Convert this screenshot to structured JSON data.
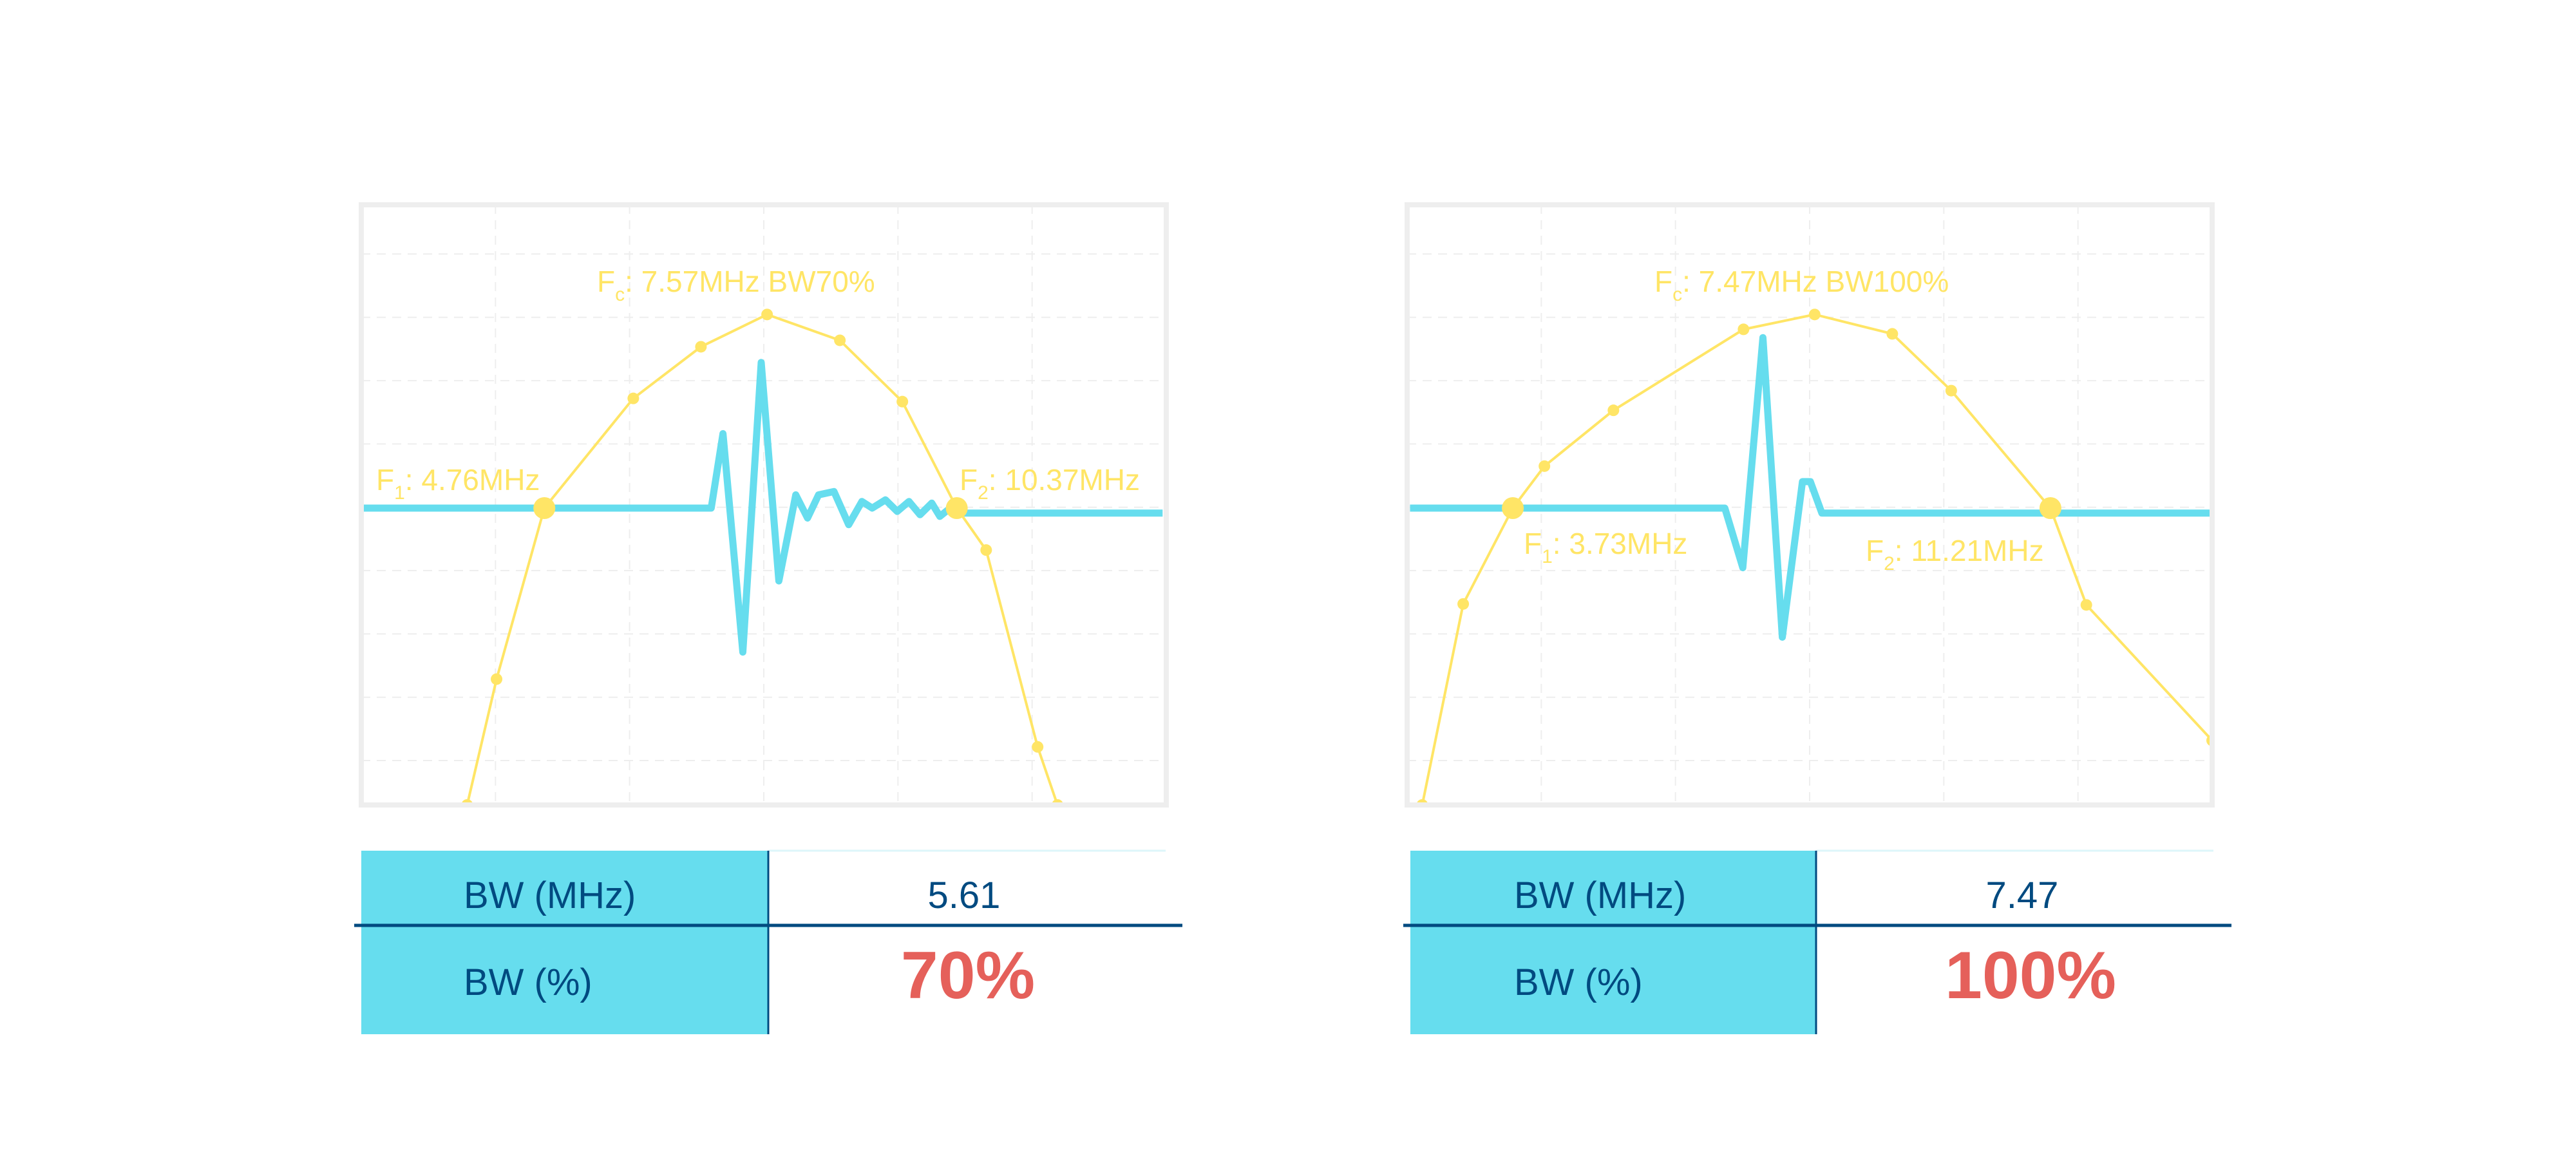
{
  "colors": {
    "spectrum": "#FFE566",
    "pulse": "#66DDEE",
    "frame": "#EEEEEE",
    "grid": "#EEEEEE",
    "table_header": "#66DDEE",
    "table_text": "#004A80",
    "highlight": "#E5605A"
  },
  "chart_data": [
    {
      "type": "line",
      "grid": true,
      "xlim": [
        2.27,
        13.22
      ],
      "ylim": [
        -15.2,
        3.4
      ],
      "series": [
        {
          "kind": "spectrum",
          "x": [
            3.71,
            4.11,
            4.76,
            5.97,
            6.89,
            7.79,
            8.78,
            9.63,
            10.37,
            10.77,
            11.47,
            11.74
          ],
          "y": [
            -15.2,
            -11.3,
            -6,
            -2.6,
            -1.0,
            0,
            -0.8,
            -2.7,
            -6,
            -7.3,
            -13.4,
            -15.2
          ]
        },
        {
          "kind": "pulse",
          "x": [
            2.29,
            4.76,
            7.03,
            7.19,
            7.46,
            7.71,
            7.95,
            8.18,
            8.34,
            8.49,
            8.7,
            8.9,
            9.08,
            9.22,
            9.4,
            9.56,
            9.72,
            9.87,
            10.03,
            10.14,
            10.28,
            10.39,
            13.17
          ],
          "amplitude": [
            0,
            0,
            0,
            0.45,
            -0.87,
            0.88,
            -0.44,
            0.08,
            -0.06,
            0.08,
            0.1,
            -0.1,
            0.04,
            0,
            0.05,
            -0.02,
            0.04,
            -0.04,
            0.03,
            -0.05,
            0,
            -0.03,
            -0.03
          ]
        }
      ],
      "markers": [
        {
          "x": 4.76,
          "y": -6
        },
        {
          "x": 10.37,
          "y": -6
        }
      ],
      "annotations": {
        "fc": {
          "symbol": "F",
          "sub": "c",
          "text": ": 7.57MHz BW70%"
        },
        "f1": {
          "symbol": "F",
          "sub": "1",
          "text": ": 4.76MHz"
        },
        "f2": {
          "symbol": "F",
          "sub": "2",
          "text": ": 10.37MHz"
        }
      }
    },
    {
      "type": "line",
      "grid": true,
      "xlim": [
        2.26,
        13.46
      ],
      "ylim": [
        -15.2,
        3.4
      ],
      "series": [
        {
          "kind": "spectrum",
          "x": [
            2.47,
            3.04,
            3.73,
            4.17,
            5.13,
            6.94,
            7.93,
            9.01,
            9.83,
            11.21,
            11.71,
            13.46
          ],
          "y": [
            -15.2,
            -8.97,
            -6,
            -4.7,
            -2.97,
            -0.46,
            0,
            -0.6,
            -2.36,
            -6,
            -9.0,
            -13.2
          ]
        },
        {
          "kind": "pulse",
          "x": [
            2.3,
            3.73,
            6.68,
            6.93,
            7.21,
            7.48,
            7.76,
            7.87,
            8.03,
            13.46
          ],
          "amplitude": [
            0,
            0,
            0,
            -0.36,
            1.03,
            -0.78,
            0.16,
            0.16,
            -0.03,
            -0.03
          ]
        }
      ],
      "markers": [
        {
          "x": 3.73,
          "y": -6
        },
        {
          "x": 11.21,
          "y": -6
        }
      ],
      "annotations": {
        "fc": {
          "symbol": "F",
          "sub": "c",
          "text": ": 7.47MHz BW100%"
        },
        "f1": {
          "symbol": "F",
          "sub": "1",
          "text": ": 3.73MHz"
        },
        "f2": {
          "symbol": "F",
          "sub": "2",
          "text": ": 11.21MHz"
        }
      }
    }
  ],
  "tables": [
    {
      "rows": [
        {
          "label": "BW (MHz)",
          "value": "5.61"
        },
        {
          "label": "BW (%)",
          "value": "70%"
        }
      ]
    },
    {
      "rows": [
        {
          "label": "BW (MHz)",
          "value": "7.47"
        },
        {
          "label": "BW (%)",
          "value": "100%"
        }
      ]
    }
  ]
}
